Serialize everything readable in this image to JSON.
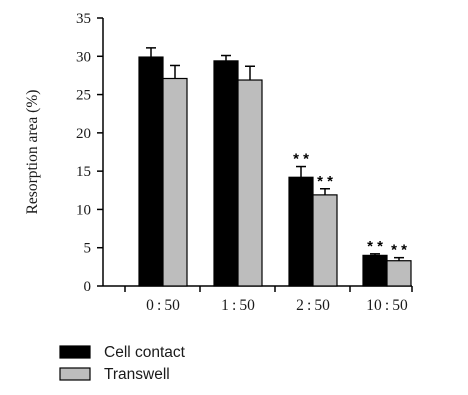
{
  "chart_data": {
    "type": "bar",
    "categories": [
      "0 : 50",
      "1 : 50",
      "2 : 50",
      "10 : 50"
    ],
    "series": [
      {
        "name": "Cell contact",
        "color": "#000000",
        "values": [
          29.9,
          29.4,
          14.2,
          4.0
        ],
        "errors": [
          1.2,
          0.7,
          1.4,
          0.2
        ],
        "annotations": [
          "",
          "",
          "**",
          "**"
        ]
      },
      {
        "name": "Transwell",
        "color": "#bdbdbd",
        "values": [
          27.1,
          26.9,
          11.9,
          3.3
        ],
        "errors": [
          1.7,
          1.8,
          0.8,
          0.4
        ],
        "annotations": [
          "",
          "",
          "**",
          "**"
        ]
      }
    ],
    "ylabel": "Resorption area (%)",
    "xlabel": "",
    "ylim": [
      0,
      35
    ],
    "yticks": [
      0,
      5,
      10,
      15,
      20,
      25,
      30,
      35
    ],
    "grid": false,
    "legend_position": "bottom-left"
  }
}
